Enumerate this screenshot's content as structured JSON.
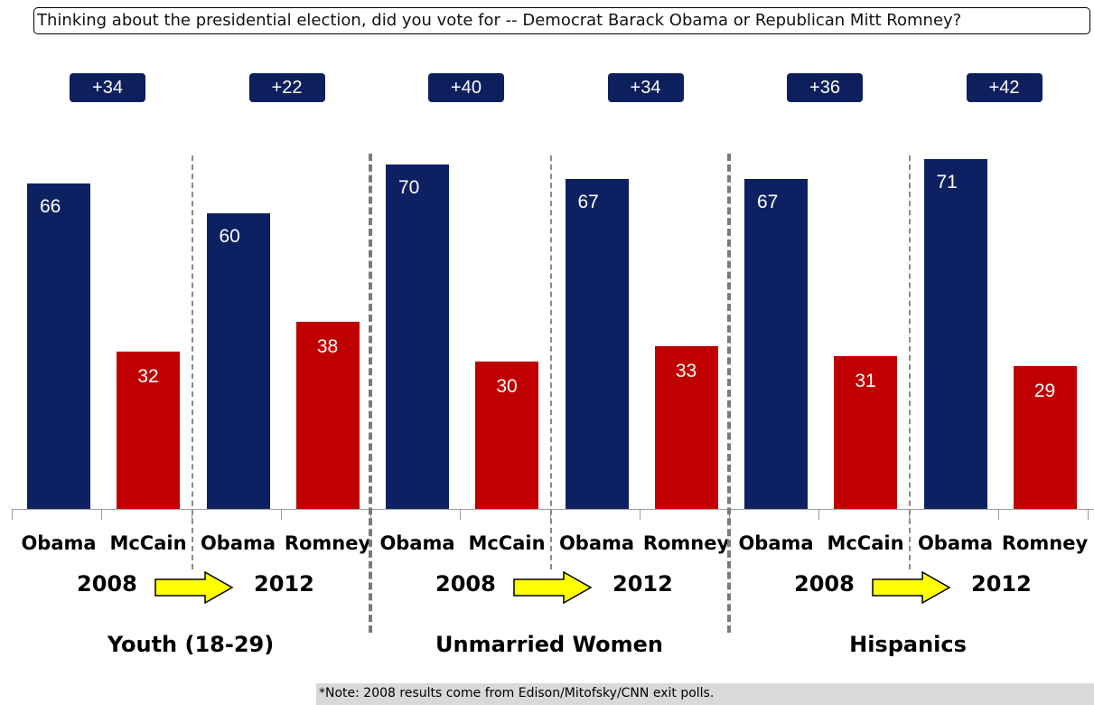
{
  "question": "Thinking about the presidential election, did you vote for -- Democrat Barack Obama or Republican Mitt Romney?",
  "note": "*Note: 2008 results  come from Edison/Mitofsky/CNN exit polls.",
  "colors": {
    "obama": "#0d2162",
    "opponent": "#c00000",
    "badge": "#0d1f5c",
    "arrow": "#ffff00"
  },
  "chart_data": {
    "type": "bar",
    "ylim": [
      0,
      100
    ],
    "groups": [
      {
        "name": "Youth (18-29)",
        "years": [
          "2008",
          "2012"
        ],
        "elections": [
          {
            "year": "2008",
            "margin": "+34",
            "bars": [
              {
                "label": "Obama",
                "value": 66,
                "party": "D"
              },
              {
                "label": "McCain",
                "value": 32,
                "party": "R"
              }
            ]
          },
          {
            "year": "2012",
            "margin": "+22",
            "bars": [
              {
                "label": "Obama",
                "value": 60,
                "party": "D"
              },
              {
                "label": "Romney",
                "value": 38,
                "party": "R"
              }
            ]
          }
        ]
      },
      {
        "name": "Unmarried Women",
        "years": [
          "2008",
          "2012"
        ],
        "elections": [
          {
            "year": "2008",
            "margin": "+40",
            "bars": [
              {
                "label": "Obama",
                "value": 70,
                "party": "D"
              },
              {
                "label": "McCain",
                "value": 30,
                "party": "R"
              }
            ]
          },
          {
            "year": "2012",
            "margin": "+34",
            "bars": [
              {
                "label": "Obama",
                "value": 67,
                "party": "D"
              },
              {
                "label": "Romney",
                "value": 33,
                "party": "R"
              }
            ]
          }
        ]
      },
      {
        "name": "Hispanics",
        "years": [
          "2008",
          "2012"
        ],
        "elections": [
          {
            "year": "2008",
            "margin": "+36",
            "bars": [
              {
                "label": "Obama",
                "value": 67,
                "party": "D"
              },
              {
                "label": "McCain",
                "value": 31,
                "party": "R"
              }
            ]
          },
          {
            "year": "2012",
            "margin": "+42",
            "bars": [
              {
                "label": "Obama",
                "value": 71,
                "party": "D"
              },
              {
                "label": "Romney",
                "value": 29,
                "party": "R"
              }
            ]
          }
        ]
      }
    ]
  }
}
